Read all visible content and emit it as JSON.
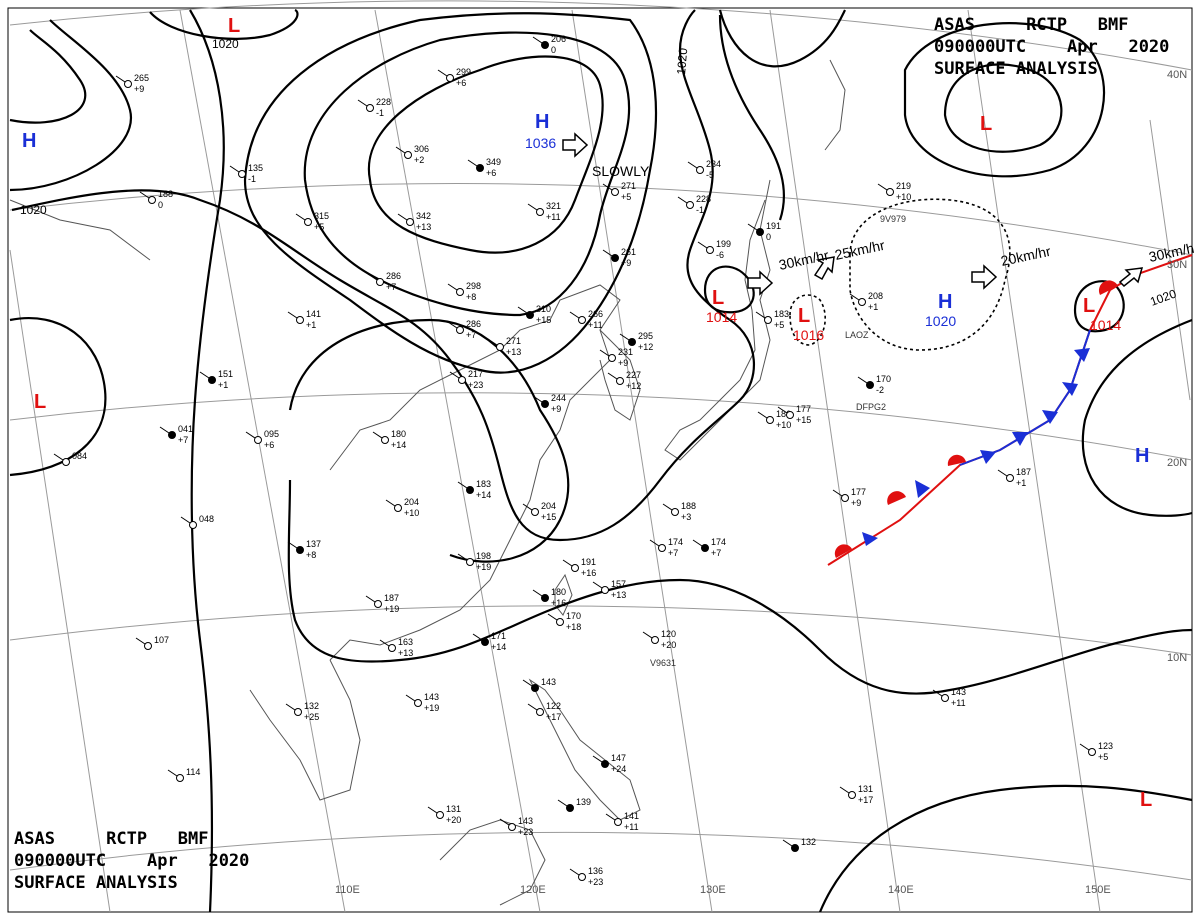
{
  "header": {
    "line1": "ASAS     RCTP   BMF",
    "line2": "090000UTC    Apr   2020",
    "line3": "SURFACE ANALYSIS"
  },
  "colors": {
    "high": "#1a2fd6",
    "low": "#e01010",
    "front_warm": "#e01010",
    "front_cold": "#1a2fd6",
    "isobar": "#000000",
    "grid": "#9a9a9a",
    "coast": "#555555"
  },
  "pressure_centers": [
    {
      "id": "h-siberia",
      "type": "H",
      "value": "1036",
      "motion": "SLOWLY"
    },
    {
      "id": "h-east",
      "type": "H",
      "value": "1020",
      "motion": "20km/hr"
    },
    {
      "id": "h-far-east",
      "type": "H",
      "value": ""
    },
    {
      "id": "h-west",
      "type": "H",
      "value": ""
    },
    {
      "id": "l-japan-sea",
      "type": "L",
      "value": "1014",
      "motion": "30km/hr"
    },
    {
      "id": "l-pacific-small",
      "type": "L",
      "value": "1016",
      "motion": "25km/hr"
    },
    {
      "id": "l-northeast",
      "type": "L",
      "value": "1014",
      "motion": "30km/h"
    },
    {
      "id": "l-north",
      "type": "L",
      "value": ""
    },
    {
      "id": "l-top",
      "type": "L",
      "value": ""
    },
    {
      "id": "l-india",
      "type": "L",
      "value": ""
    },
    {
      "id": "l-south",
      "type": "L",
      "value": ""
    }
  ],
  "isobar_labels": [
    "1020",
    "1020",
    "1020",
    "1020"
  ],
  "longitudes": [
    "110E",
    "120E",
    "130E",
    "140E",
    "150E"
  ],
  "latitudes": [
    "40N",
    "30N",
    "20N",
    "10N"
  ],
  "stations": [
    {
      "t": "206",
      "v": "0"
    },
    {
      "t": "299",
      "v": "+6"
    },
    {
      "t": "228",
      "v": "-1"
    },
    {
      "t": "306",
      "v": "+2"
    },
    {
      "t": "349",
      "v": "+6"
    },
    {
      "t": "342",
      "v": "+13"
    },
    {
      "t": "321",
      "v": "+11"
    },
    {
      "t": "271",
      "v": "+5"
    },
    {
      "t": "261",
      "v": "+9"
    },
    {
      "t": "234",
      "v": "-5"
    },
    {
      "t": "228",
      "v": "-1"
    },
    {
      "t": "199",
      "v": "-6"
    },
    {
      "t": "191",
      "v": "0"
    },
    {
      "t": "315",
      "v": "+5"
    },
    {
      "t": "286",
      "v": "+7"
    },
    {
      "t": "298",
      "v": "+8"
    },
    {
      "t": "310",
      "v": "+15"
    },
    {
      "t": "266",
      "v": "+11"
    },
    {
      "t": "286",
      "v": "+7"
    },
    {
      "t": "271",
      "v": "+13"
    },
    {
      "t": "295",
      "v": "+12"
    },
    {
      "t": "231",
      "v": "+9"
    },
    {
      "t": "227",
      "v": "+12"
    },
    {
      "t": "217",
      "v": "+23"
    },
    {
      "t": "244",
      "v": "+9"
    },
    {
      "t": "183",
      "v": "+5"
    },
    {
      "t": "186",
      "v": "+10"
    },
    {
      "t": "177",
      "v": "+15"
    },
    {
      "t": "170",
      "v": "-2"
    },
    {
      "t": "219",
      "v": "+10"
    },
    {
      "t": "208",
      "v": "+1"
    },
    {
      "t": "141",
      "v": "+1"
    },
    {
      "t": "151",
      "v": "+1"
    },
    {
      "t": "135",
      "v": "-1"
    },
    {
      "t": "188",
      "v": "0"
    },
    {
      "t": "265",
      "v": "+9"
    },
    {
      "t": "041",
      "v": "+7"
    },
    {
      "t": "095",
      "v": "+6"
    },
    {
      "t": "084",
      "v": ""
    },
    {
      "t": "180",
      "v": "+14"
    },
    {
      "t": "183",
      "v": "+14"
    },
    {
      "t": "204",
      "v": "+10"
    },
    {
      "t": "204",
      "v": "+15"
    },
    {
      "t": "188",
      "v": "+3"
    },
    {
      "t": "174",
      "v": "+7"
    },
    {
      "t": "174",
      "v": "+7"
    },
    {
      "t": "177",
      "v": "+9"
    },
    {
      "t": "187",
      "v": "+1"
    },
    {
      "t": "137",
      "v": "+8"
    },
    {
      "t": "198",
      "v": "+19"
    },
    {
      "t": "191",
      "v": "+16"
    },
    {
      "t": "187",
      "v": "+19"
    },
    {
      "t": "180",
      "v": "+16"
    },
    {
      "t": "157",
      "v": "+13"
    },
    {
      "t": "170",
      "v": "+18"
    },
    {
      "t": "163",
      "v": "+13"
    },
    {
      "t": "171",
      "v": "+14"
    },
    {
      "t": "120",
      "v": "+20"
    },
    {
      "t": "107",
      "v": ""
    },
    {
      "t": "143",
      "v": "+19"
    },
    {
      "t": "143",
      "v": ""
    },
    {
      "t": "122",
      "v": "+17"
    },
    {
      "t": "132",
      "v": "+25"
    },
    {
      "t": "143",
      "v": "+11"
    },
    {
      "t": "147",
      "v": "+24"
    },
    {
      "t": "123",
      "v": "+5"
    },
    {
      "t": "114",
      "v": ""
    },
    {
      "t": "131",
      "v": "+17"
    },
    {
      "t": "139",
      "v": ""
    },
    {
      "t": "131",
      "v": "+20"
    },
    {
      "t": "143",
      "v": "+23"
    },
    {
      "t": "141",
      "v": "+11"
    },
    {
      "t": "132",
      "v": ""
    },
    {
      "t": "136",
      "v": "+23"
    },
    {
      "t": "048",
      "v": ""
    }
  ],
  "ship_ids": [
    "9V979",
    "LAOZ",
    "DFPG2",
    "V9631"
  ]
}
